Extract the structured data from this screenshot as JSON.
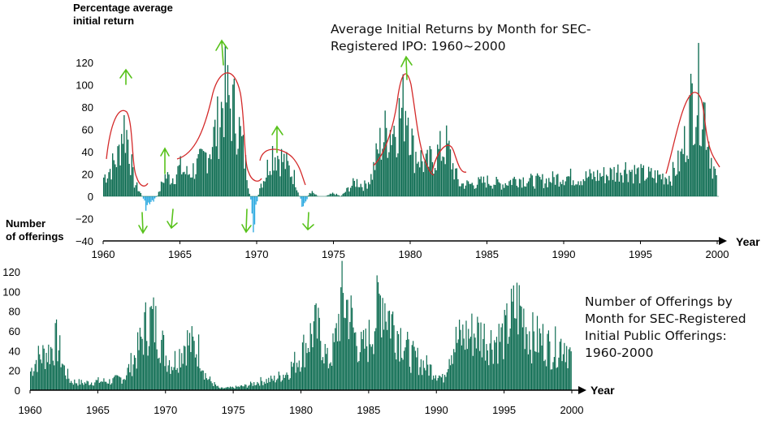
{
  "chart_data": [
    {
      "type": "bar",
      "title": "Average Initial Returns by Month for SEC-Registered IPO: 1960~2000",
      "ylabel": "Percentage average initial return",
      "xlabel": "Year",
      "xlim": [
        1960,
        2000
      ],
      "ylim": [
        -40,
        130
      ],
      "yticks": [
        "120",
        "100",
        "80",
        "60",
        "40",
        "20",
        "0",
        "−20",
        "−40"
      ],
      "xticks": [
        "1960",
        "1965",
        "1970",
        "1975",
        "1980",
        "1985",
        "1990",
        "1995",
        "2000"
      ],
      "positive_color": "#0b6b50",
      "negative_color": "#2aa9e0",
      "annotation_colors": {
        "cycle_curves": "#d42a2a",
        "arrows": "#58c21c"
      },
      "x": [
        1960.0,
        1960.5,
        1961.0,
        1961.3,
        1961.6,
        1962.0,
        1962.5,
        1962.8,
        1963.2,
        1963.6,
        1964.0,
        1964.5,
        1965.0,
        1965.5,
        1966.0,
        1966.5,
        1967.0,
        1967.5,
        1967.9,
        1968.3,
        1968.7,
        1969.0,
        1969.4,
        1969.8,
        1970.2,
        1970.6,
        1971.0,
        1971.5,
        1972.0,
        1972.5,
        1973.0,
        1973.5,
        1974.0,
        1974.5,
        1975.0,
        1975.5,
        1976.0,
        1976.5,
        1977.0,
        1977.5,
        1978.0,
        1978.5,
        1979.0,
        1979.5,
        1979.8,
        1980.2,
        1980.6,
        1981.0,
        1981.5,
        1982.0,
        1982.4,
        1982.8,
        1983.2,
        1984.0,
        1985.0,
        1986.0,
        1987.0,
        1988.0,
        1989.0,
        1990.0,
        1991.0,
        1992.0,
        1993.0,
        1994.0,
        1995.0,
        1996.0,
        1997.0,
        1997.6,
        1998.0,
        1998.4,
        1998.8,
        1999.2,
        1999.6,
        2000.0
      ],
      "values": [
        18,
        28,
        40,
        72,
        60,
        15,
        2,
        -10,
        -6,
        2,
        20,
        18,
        28,
        22,
        28,
        35,
        50,
        70,
        102,
        90,
        80,
        55,
        22,
        -28,
        10,
        22,
        45,
        40,
        30,
        18,
        -12,
        5,
        0,
        0,
        3,
        0,
        8,
        15,
        10,
        20,
        50,
        65,
        70,
        85,
        98,
        45,
        40,
        30,
        38,
        45,
        50,
        30,
        12,
        12,
        15,
        12,
        18,
        15,
        16,
        20,
        18,
        20,
        22,
        28,
        22,
        20,
        20,
        35,
        60,
        100,
        102,
        85,
        40,
        15
      ]
    },
    {
      "type": "bar",
      "title": "Number of Offerings by Month for SEC-Registered Initial Public Offerings: 1960-2000",
      "ylabel": "Number of offerings",
      "xlabel": "Year",
      "xlim": [
        1960,
        2000
      ],
      "ylim": [
        0,
        125
      ],
      "yticks": [
        "120",
        "100",
        "80",
        "60",
        "40",
        "20",
        "0"
      ],
      "xticks": [
        "1960",
        "1965",
        "1970",
        "1975",
        "1980",
        "1985",
        "1990",
        "1995",
        "2000"
      ],
      "color": "#0b6b50",
      "x": [
        1960.0,
        1960.5,
        1961.0,
        1961.5,
        1962.0,
        1962.5,
        1963.0,
        1964.0,
        1965.0,
        1966.0,
        1967.0,
        1968.0,
        1968.5,
        1969.0,
        1969.5,
        1970.0,
        1970.5,
        1971.0,
        1971.5,
        1972.0,
        1972.5,
        1973.0,
        1973.5,
        1974.0,
        1975.0,
        1976.0,
        1977.0,
        1978.0,
        1979.0,
        1980.0,
        1980.5,
        1981.0,
        1981.5,
        1982.0,
        1982.5,
        1983.0,
        1983.5,
        1984.0,
        1984.5,
        1985.0,
        1985.5,
        1986.0,
        1986.5,
        1987.0,
        1987.5,
        1988.0,
        1989.0,
        1990.0,
        1990.5,
        1991.0,
        1991.5,
        1992.0,
        1993.0,
        1994.0,
        1995.0,
        1995.5,
        1996.0,
        1996.5,
        1997.0,
        1998.0,
        1998.5,
        1999.0,
        1999.5,
        2000.0
      ],
      "values": [
        20,
        35,
        40,
        45,
        55,
        25,
        10,
        8,
        10,
        10,
        15,
        45,
        70,
        80,
        65,
        40,
        30,
        40,
        55,
        50,
        45,
        15,
        8,
        2,
        3,
        5,
        10,
        12,
        20,
        40,
        55,
        70,
        60,
        30,
        50,
        100,
        95,
        60,
        45,
        55,
        80,
        110,
        85,
        70,
        60,
        40,
        30,
        20,
        12,
        45,
        55,
        60,
        65,
        55,
        60,
        80,
        95,
        80,
        60,
        55,
        45,
        50,
        55,
        35
      ]
    }
  ],
  "annotations": {
    "top_title": "Average Initial Returns by Month for SEC-Registered IPO: 1960~2000",
    "bottom_title": "Number of Offerings by Month for SEC-Registered Initial Public Offerings: 1960-2000",
    "top_ylabel_line1": "Percentage average",
    "top_ylabel_line2": "initial return",
    "bottom_ylabel_line1": "Number",
    "bottom_ylabel_line2": "of offerings",
    "year_label": "Year"
  }
}
